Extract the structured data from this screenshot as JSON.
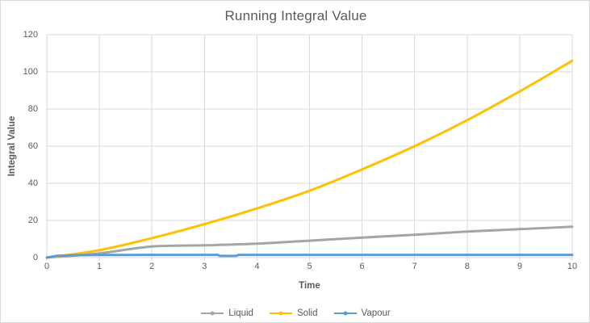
{
  "chart_data": {
    "type": "line",
    "title": "Running Integral Value",
    "xlabel": "Time",
    "ylabel": "Integral Value",
    "xlim": [
      0,
      10
    ],
    "ylim": [
      0,
      120
    ],
    "x_ticks": [
      0,
      1,
      2,
      3,
      4,
      5,
      6,
      7,
      8,
      9,
      10
    ],
    "y_ticks": [
      0,
      20,
      40,
      60,
      80,
      100,
      120
    ],
    "grid": true,
    "legend_position": "bottom",
    "colors": {
      "text": "#595959",
      "grid": "#d9d9d9",
      "axis": "#d9d9d9",
      "background": "#ffffff"
    },
    "series": [
      {
        "name": "Liquid",
        "color": "#a5a5a5",
        "smooth": true,
        "x": [
          0,
          1,
          2,
          3,
          4,
          5,
          6,
          7,
          8,
          9,
          10
        ],
        "y": [
          0,
          2.3,
          6.0,
          6.6,
          7.5,
          9.1,
          10.8,
          12.3,
          14.0,
          15.3,
          16.6
        ]
      },
      {
        "name": "Solid",
        "color": "#ffc000",
        "smooth": true,
        "x": [
          0,
          1,
          2,
          3,
          4,
          5,
          6,
          7,
          8,
          9,
          10
        ],
        "y": [
          0,
          4,
          10.5,
          18,
          26.5,
          36,
          47.5,
          60,
          74,
          89.5,
          106
        ]
      },
      {
        "name": "Vapour",
        "color": "#5b9bd5",
        "smooth": false,
        "x": [
          0,
          0.2,
          0.5,
          1,
          1.5,
          2,
          2.5,
          3,
          3.25,
          3.3,
          3.6,
          3.65,
          4,
          5,
          6,
          7,
          8,
          9,
          10
        ],
        "y": [
          0,
          1.0,
          1.25,
          1.4,
          1.45,
          1.5,
          1.5,
          1.5,
          1.5,
          0.9,
          0.9,
          1.5,
          1.5,
          1.5,
          1.5,
          1.5,
          1.5,
          1.5,
          1.5
        ]
      }
    ]
  }
}
